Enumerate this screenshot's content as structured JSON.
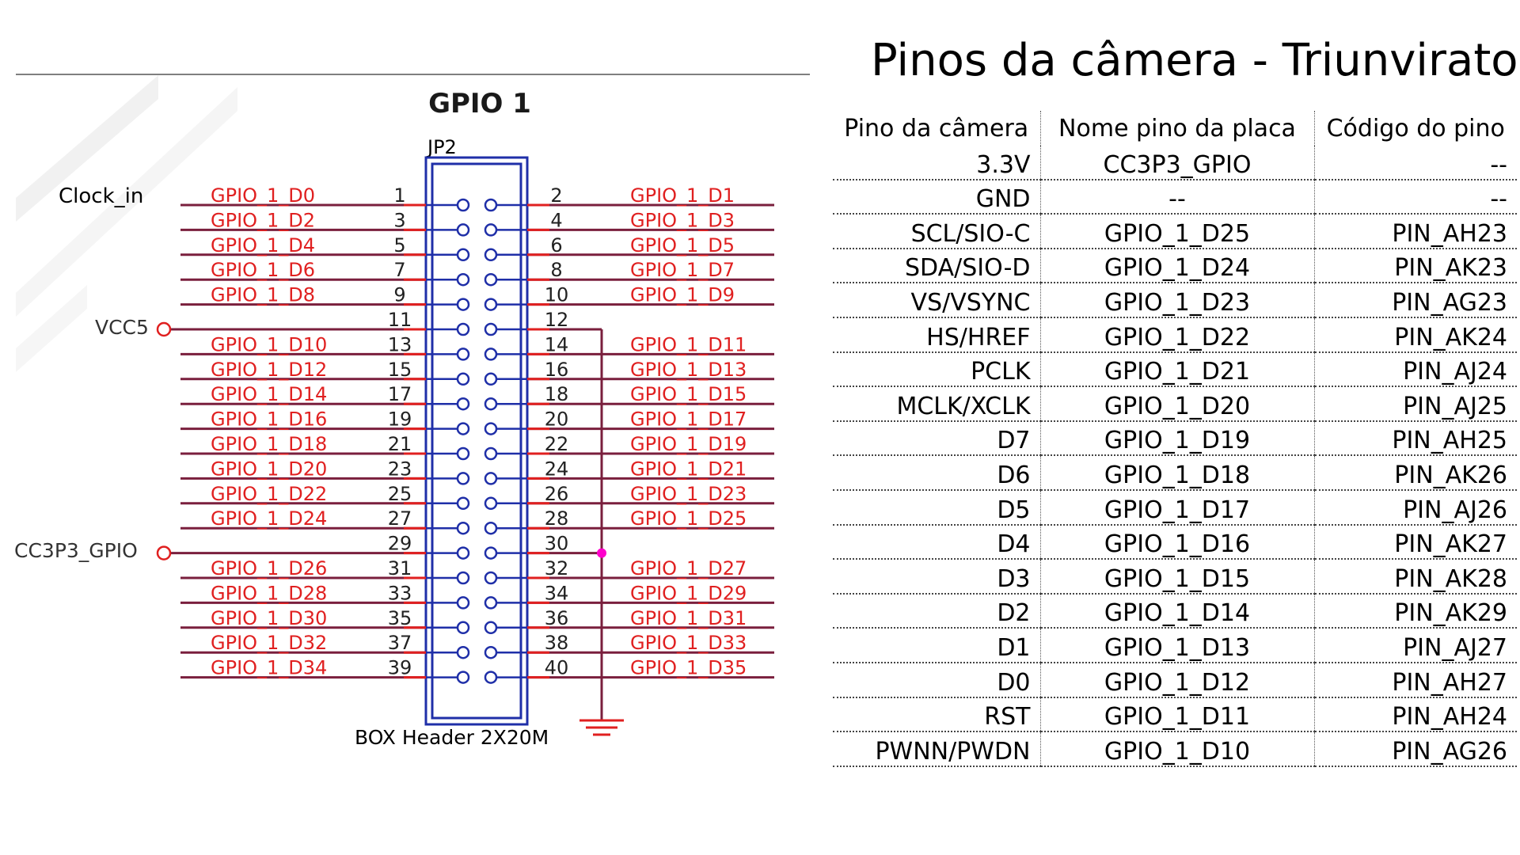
{
  "schematic": {
    "title": "GPIO 1",
    "connector_ref": "JP2",
    "connector_type": "BOX Header 2X20M",
    "clock_label": "Clock_in",
    "vcc5_label": "VCC5",
    "cc3p3_label": "CC3P3_GPIO",
    "pins": [
      {
        "pin": 1,
        "label": "GPIO_1_D0"
      },
      {
        "pin": 2,
        "label": "GPIO_1_D1"
      },
      {
        "pin": 3,
        "label": "GPIO_1_D2"
      },
      {
        "pin": 4,
        "label": "GPIO_1_D3"
      },
      {
        "pin": 5,
        "label": "GPIO_1_D4"
      },
      {
        "pin": 6,
        "label": "GPIO_1_D5"
      },
      {
        "pin": 7,
        "label": "GPIO_1_D6"
      },
      {
        "pin": 8,
        "label": "GPIO_1_D7"
      },
      {
        "pin": 9,
        "label": "GPIO_1_D8"
      },
      {
        "pin": 10,
        "label": "GPIO_1_D9"
      },
      {
        "pin": 11,
        "label": ""
      },
      {
        "pin": 12,
        "label": ""
      },
      {
        "pin": 13,
        "label": "GPIO_1_D10"
      },
      {
        "pin": 14,
        "label": "GPIO_1_D11"
      },
      {
        "pin": 15,
        "label": "GPIO_1_D12"
      },
      {
        "pin": 16,
        "label": "GPIO_1_D13"
      },
      {
        "pin": 17,
        "label": "GPIO_1_D14"
      },
      {
        "pin": 18,
        "label": "GPIO_1_D15"
      },
      {
        "pin": 19,
        "label": "GPIO_1_D16"
      },
      {
        "pin": 20,
        "label": "GPIO_1_D17"
      },
      {
        "pin": 21,
        "label": "GPIO_1_D18"
      },
      {
        "pin": 22,
        "label": "GPIO_1_D19"
      },
      {
        "pin": 23,
        "label": "GPIO_1_D20"
      },
      {
        "pin": 24,
        "label": "GPIO_1_D21"
      },
      {
        "pin": 25,
        "label": "GPIO_1_D22"
      },
      {
        "pin": 26,
        "label": "GPIO_1_D23"
      },
      {
        "pin": 27,
        "label": "GPIO_1_D24"
      },
      {
        "pin": 28,
        "label": "GPIO_1_D25"
      },
      {
        "pin": 29,
        "label": ""
      },
      {
        "pin": 30,
        "label": ""
      },
      {
        "pin": 31,
        "label": "GPIO_1_D26"
      },
      {
        "pin": 32,
        "label": "GPIO_1_D27"
      },
      {
        "pin": 33,
        "label": "GPIO_1_D28"
      },
      {
        "pin": 34,
        "label": "GPIO_1_D29"
      },
      {
        "pin": 35,
        "label": "GPIO_1_D30"
      },
      {
        "pin": 36,
        "label": "GPIO_1_D31"
      },
      {
        "pin": 37,
        "label": "GPIO_1_D32"
      },
      {
        "pin": 38,
        "label": "GPIO_1_D33"
      },
      {
        "pin": 39,
        "label": "GPIO_1_D34"
      },
      {
        "pin": 40,
        "label": "GPIO_1_D35"
      }
    ],
    "colors": {
      "pin_label": "#e02020",
      "wire": "#7a1f3d",
      "connector": "#1f2fa8",
      "clock_label": "#3d8fe0",
      "junction": "#ff00cc"
    }
  },
  "page": {
    "title": "Pinos da câmera - Triunvirato"
  },
  "table": {
    "headers": [
      "Pino da câmera",
      "Nome pino da placa",
      "Código do pino"
    ],
    "rows": [
      [
        "3.3V",
        "CC3P3_GPIO",
        "--"
      ],
      [
        "GND",
        "--",
        "--"
      ],
      [
        "SCL/SIO-C",
        "GPIO_1_D25",
        "PIN_AH23"
      ],
      [
        "SDA/SIO-D",
        "GPIO_1_D24",
        "PIN_AK23"
      ],
      [
        "VS/VSYNC",
        "GPIO_1_D23",
        "PIN_AG23"
      ],
      [
        "HS/HREF",
        "GPIO_1_D22",
        "PIN_AK24"
      ],
      [
        "PCLK",
        "GPIO_1_D21",
        "PIN_AJ24"
      ],
      [
        "MCLK/XCLK",
        "GPIO_1_D20",
        "PIN_AJ25"
      ],
      [
        "D7",
        "GPIO_1_D19",
        "PIN_AH25"
      ],
      [
        "D6",
        "GPIO_1_D18",
        "PIN_AK26"
      ],
      [
        "D5",
        "GPIO_1_D17",
        "PIN_AJ26"
      ],
      [
        "D4",
        "GPIO_1_D16",
        "PIN_AK27"
      ],
      [
        "D3",
        "GPIO_1_D15",
        "PIN_AK28"
      ],
      [
        "D2",
        "GPIO_1_D14",
        "PIN_AK29"
      ],
      [
        "D1",
        "GPIO_1_D13",
        "PIN_AJ27"
      ],
      [
        "D0",
        "GPIO_1_D12",
        "PIN_AH27"
      ],
      [
        "RST",
        "GPIO_1_D11",
        "PIN_AH24"
      ],
      [
        "PWNN/PWDN",
        "GPIO_1_D10",
        "PIN_AG26"
      ]
    ]
  }
}
